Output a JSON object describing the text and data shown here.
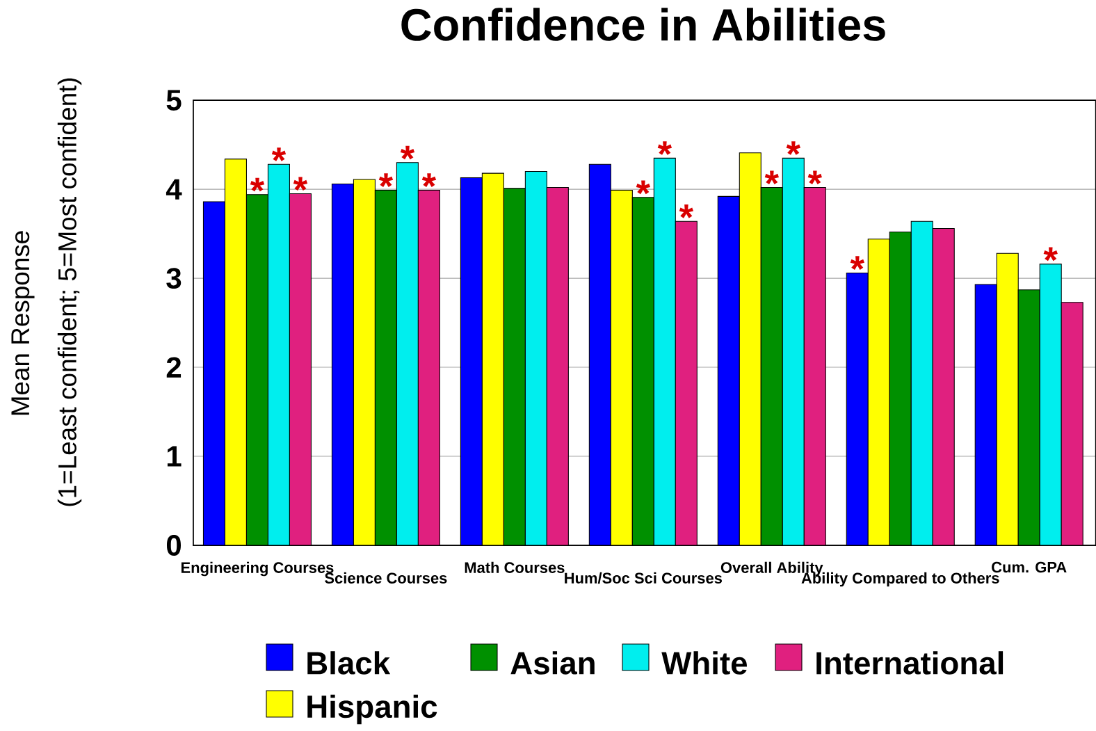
{
  "chart_data": {
    "type": "bar",
    "title": "Confidence in Abilities",
    "categories": [
      "Engineering Courses",
      "Science Courses",
      "Math Courses",
      "Hum/Soc Sci Courses",
      "Overall Ability",
      "Ability Compared to Others",
      "Cum. GPA"
    ],
    "series": [
      {
        "name": "Black",
        "color": "#0000ff",
        "values": [
          3.86,
          4.06,
          4.13,
          4.28,
          3.92,
          3.06,
          2.93
        ],
        "value_labels": [
          null,
          null,
          null,
          null,
          null,
          "*",
          null
        ]
      },
      {
        "name": "Hispanic",
        "color": "#ffff00",
        "values": [
          4.34,
          4.11,
          4.18,
          3.99,
          4.41,
          3.44,
          3.28
        ]
      },
      {
        "name": "Asian",
        "color": "#009000",
        "values": [
          3.94,
          3.99,
          4.01,
          3.91,
          4.02,
          3.52,
          2.87
        ],
        "value_labels": [
          "*",
          "*",
          null,
          "*",
          "*",
          null,
          null
        ]
      },
      {
        "name": "White",
        "color": "#00eeee",
        "values": [
          4.28,
          4.3,
          4.2,
          4.35,
          4.35,
          3.64,
          3.16
        ],
        "value_labels": [
          "*",
          "*",
          null,
          "*",
          "*",
          null,
          "*"
        ]
      },
      {
        "name": "International",
        "color": "#e0207f",
        "values": [
          3.95,
          3.99,
          4.02,
          3.64,
          4.02,
          3.56,
          2.73
        ],
        "value_labels": [
          "*",
          "*",
          null,
          "*",
          "*",
          null,
          null
        ]
      }
    ],
    "ylim": [
      0,
      5
    ],
    "yticks": [
      0,
      1,
      2,
      3,
      4,
      5
    ],
    "grid": "y",
    "legend": "bottom",
    "annotations": [
      "Mean Response",
      "(1=Least confident; 5=Most confident)"
    ]
  }
}
